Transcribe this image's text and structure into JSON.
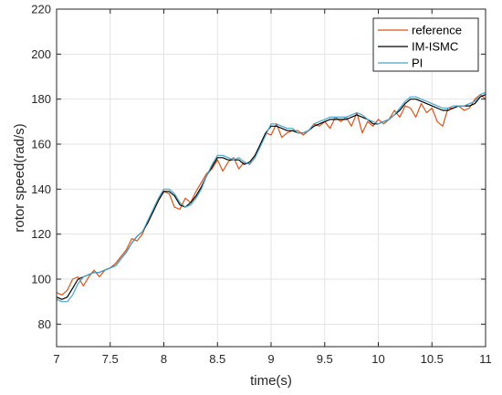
{
  "chart_data": {
    "type": "line",
    "title": "",
    "xlabel": "time(s)",
    "ylabel": "rotor speed(rad/s)",
    "xlim": [
      7,
      11
    ],
    "ylim": [
      70,
      220
    ],
    "x_ticks": [
      7,
      7.5,
      8,
      8.5,
      9,
      9.5,
      10,
      10.5,
      11
    ],
    "x_tick_labels": [
      "7",
      "7.5",
      "8",
      "8.5",
      "9",
      "9.5",
      "10",
      "10.5",
      "11"
    ],
    "y_ticks": [
      80,
      100,
      120,
      140,
      160,
      180,
      200,
      220
    ],
    "y_tick_labels": [
      "80",
      "100",
      "120",
      "140",
      "160",
      "180",
      "200",
      "220"
    ],
    "grid": true,
    "legend_position": "top-right",
    "series": [
      {
        "name": "reference",
        "color": "#d95319",
        "x": [
          7.0,
          7.05,
          7.1,
          7.15,
          7.2,
          7.25,
          7.3,
          7.35,
          7.4,
          7.45,
          7.5,
          7.55,
          7.6,
          7.65,
          7.7,
          7.75,
          7.8,
          7.85,
          7.9,
          7.95,
          8.0,
          8.05,
          8.1,
          8.15,
          8.2,
          8.25,
          8.3,
          8.35,
          8.4,
          8.45,
          8.5,
          8.55,
          8.6,
          8.65,
          8.7,
          8.75,
          8.8,
          8.85,
          8.9,
          8.95,
          9.0,
          9.05,
          9.1,
          9.15,
          9.2,
          9.25,
          9.3,
          9.35,
          9.4,
          9.45,
          9.5,
          9.55,
          9.6,
          9.65,
          9.7,
          9.75,
          9.8,
          9.85,
          9.9,
          9.95,
          10.0,
          10.05,
          10.1,
          10.15,
          10.2,
          10.25,
          10.3,
          10.35,
          10.4,
          10.45,
          10.5,
          10.55,
          10.6,
          10.65,
          10.7,
          10.75,
          10.8,
          10.85,
          10.9,
          10.95,
          11.0
        ],
        "values": [
          94,
          93,
          95,
          100,
          101,
          97,
          101,
          104,
          101,
          104,
          105,
          107,
          110,
          113,
          118,
          117,
          120,
          126,
          130,
          135,
          139,
          138,
          132,
          131,
          136,
          134,
          139,
          143,
          147,
          149,
          153,
          148,
          152,
          154,
          149,
          152,
          151,
          154,
          160,
          165,
          164,
          169,
          163,
          165,
          166,
          166,
          164,
          166,
          169,
          168,
          170,
          167,
          172,
          170,
          172,
          168,
          174,
          165,
          170,
          168,
          171,
          169,
          171,
          175,
          172,
          177,
          176,
          172,
          178,
          174,
          176,
          170,
          168,
          176,
          176,
          177,
          175,
          176,
          180,
          182,
          180
        ]
      },
      {
        "name": "IM-ISMC",
        "color": "#000000",
        "x": [
          7.0,
          7.05,
          7.1,
          7.15,
          7.2,
          7.25,
          7.3,
          7.35,
          7.4,
          7.45,
          7.5,
          7.55,
          7.6,
          7.65,
          7.7,
          7.75,
          7.8,
          7.85,
          7.9,
          7.95,
          8.0,
          8.05,
          8.1,
          8.15,
          8.2,
          8.25,
          8.3,
          8.35,
          8.4,
          8.45,
          8.5,
          8.55,
          8.6,
          8.65,
          8.7,
          8.75,
          8.8,
          8.85,
          8.9,
          8.95,
          9.0,
          9.05,
          9.1,
          9.15,
          9.2,
          9.25,
          9.3,
          9.35,
          9.4,
          9.45,
          9.5,
          9.55,
          9.6,
          9.65,
          9.7,
          9.75,
          9.8,
          9.85,
          9.9,
          9.95,
          10.0,
          10.05,
          10.1,
          10.15,
          10.2,
          10.25,
          10.3,
          10.35,
          10.4,
          10.45,
          10.5,
          10.55,
          10.6,
          10.65,
          10.7,
          10.75,
          10.8,
          10.85,
          10.9,
          10.95,
          11.0
        ],
        "values": [
          92,
          91,
          92,
          96,
          100,
          101,
          102,
          103,
          103,
          104,
          105,
          106,
          109,
          112,
          116,
          119,
          121,
          125,
          130,
          135,
          139,
          139,
          137,
          133,
          132,
          134,
          137,
          141,
          146,
          150,
          154,
          154,
          153,
          153,
          153,
          151,
          152,
          155,
          160,
          165,
          168,
          168,
          167,
          166,
          166,
          165,
          165,
          166,
          168,
          169,
          170,
          171,
          171,
          171,
          171,
          172,
          173,
          172,
          171,
          169,
          169,
          170,
          171,
          173,
          175,
          178,
          180,
          180,
          179,
          178,
          177,
          176,
          175,
          175,
          176,
          177,
          177,
          177,
          178,
          181,
          182
        ]
      },
      {
        "name": "PI",
        "color": "#4aa3c9",
        "x": [
          7.0,
          7.05,
          7.1,
          7.15,
          7.2,
          7.25,
          7.3,
          7.35,
          7.4,
          7.45,
          7.5,
          7.55,
          7.6,
          7.65,
          7.7,
          7.75,
          7.8,
          7.85,
          7.9,
          7.95,
          8.0,
          8.05,
          8.1,
          8.15,
          8.2,
          8.25,
          8.3,
          8.35,
          8.4,
          8.45,
          8.5,
          8.55,
          8.6,
          8.65,
          8.7,
          8.75,
          8.8,
          8.85,
          8.9,
          8.95,
          9.0,
          9.05,
          9.1,
          9.15,
          9.2,
          9.25,
          9.3,
          9.35,
          9.4,
          9.45,
          9.5,
          9.55,
          9.6,
          9.65,
          9.7,
          9.75,
          9.8,
          9.85,
          9.9,
          9.95,
          10.0,
          10.05,
          10.1,
          10.15,
          10.2,
          10.25,
          10.3,
          10.35,
          10.4,
          10.45,
          10.5,
          10.55,
          10.6,
          10.65,
          10.7,
          10.75,
          10.8,
          10.85,
          10.9,
          10.95,
          11.0
        ],
        "values": [
          91,
          90,
          90,
          93,
          98,
          101,
          102,
          103,
          103,
          104,
          105,
          106,
          109,
          112,
          116,
          119,
          121,
          126,
          131,
          136,
          140,
          140,
          138,
          134,
          132,
          133,
          136,
          140,
          146,
          151,
          155,
          155,
          154,
          153,
          154,
          152,
          151,
          154,
          159,
          164,
          169,
          169,
          168,
          167,
          167,
          165,
          165,
          166,
          169,
          170,
          171,
          172,
          172,
          172,
          172,
          173,
          174,
          173,
          171,
          170,
          169,
          170,
          171,
          173,
          176,
          179,
          181,
          181,
          180,
          179,
          178,
          177,
          176,
          176,
          177,
          177,
          177,
          178,
          179,
          182,
          183
        ]
      }
    ]
  }
}
